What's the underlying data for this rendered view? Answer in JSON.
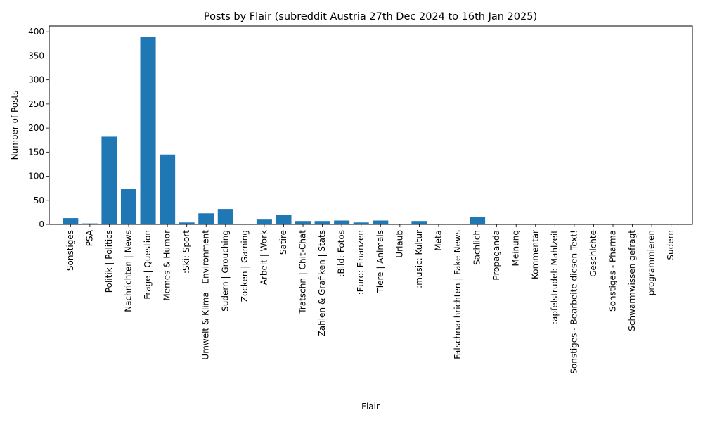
{
  "chart_data": {
    "type": "bar",
    "title": "Posts by Flair (subreddit Austria 27th Dec 2024 to 16th Jan 2025)",
    "xlabel": "Flair",
    "ylabel": "Number of Posts",
    "ylim": [
      0,
      412
    ],
    "yticks": [
      0,
      50,
      100,
      150,
      200,
      250,
      300,
      350,
      400
    ],
    "bar_color": "#1f77b4",
    "grid": false,
    "categories": [
      "Sonstiges",
      "PSA",
      "Politik | Politics",
      "Nachrichten | News",
      "Frage | Question",
      "Memes & Humor",
      ":Ski: Sport",
      "Umwelt & Klima | Environment",
      "Sudern | Grouching",
      "Zocken | Gaming",
      "Arbeit | Work",
      "Satire",
      "Tratschn | Chit-Chat",
      "Zahlen & Grafiken | Stats",
      ":Bild: Fotos",
      ":Euro: Finanzen",
      "Tiere | Animals",
      "Urlaub",
      ":music: Kultur",
      "Meta",
      "Falschnachrichten | Fake-News",
      "Sachlich",
      "Propaganda",
      "Meinung",
      "Kommentar",
      ":apfelstrudel: Mahlzeit",
      "Sonstiges - Bearbeite diesen Text!",
      "Geschichte",
      "Sonstiges - Pharma",
      "Schwarmwissen gefragt",
      "programmieren",
      "Sudern"
    ],
    "values": [
      13,
      2,
      182,
      73,
      390,
      145,
      4,
      23,
      32,
      1,
      10,
      19,
      7,
      7,
      8,
      4,
      8,
      0,
      7,
      1,
      0,
      16,
      1,
      0,
      0,
      1,
      0,
      0,
      0,
      0,
      0,
      0
    ]
  }
}
